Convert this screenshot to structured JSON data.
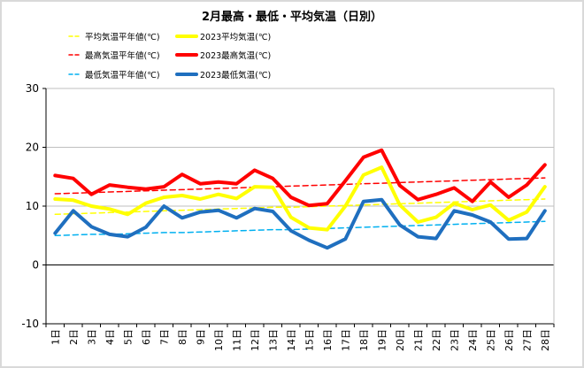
{
  "chart_data": {
    "type": "line",
    "title": "2月最高・最低・平均気温（日別）",
    "xlabel": "",
    "ylabel": "",
    "ylim": [
      -10,
      30
    ],
    "yticks": [
      -10,
      0,
      10,
      20,
      30
    ],
    "grid": "horizontal",
    "categories": [
      "1日",
      "2日",
      "3日",
      "4日",
      "5日",
      "6日",
      "7日",
      "8日",
      "9日",
      "10日",
      "11日",
      "12日",
      "13日",
      "14日",
      "15日",
      "16日",
      "17日",
      "18日",
      "19日",
      "20日",
      "21日",
      "22日",
      "23日",
      "24日",
      "25日",
      "26日",
      "27日",
      "28日"
    ],
    "legend_position": "top-left",
    "series": [
      {
        "name": "平均気温平年値(℃)",
        "color": "#ffff00",
        "style": "dashed",
        "width": 1.5,
        "values": [
          8.6,
          8.7,
          8.8,
          8.9,
          9.0,
          9.1,
          9.2,
          9.3,
          9.4,
          9.5,
          9.6,
          9.7,
          9.8,
          9.8,
          9.9,
          10.0,
          10.1,
          10.2,
          10.3,
          10.4,
          10.5,
          10.6,
          10.7,
          10.8,
          10.9,
          11.0,
          11.1,
          11.2
        ]
      },
      {
        "name": "2023平均気温(℃)",
        "color": "#ffff00",
        "style": "solid",
        "width": 4,
        "values": [
          11.2,
          11.0,
          10.0,
          9.5,
          8.6,
          10.5,
          11.5,
          11.8,
          11.2,
          12.0,
          11.3,
          13.3,
          13.2,
          8.1,
          6.3,
          6.0,
          10.0,
          15.3,
          16.6,
          10.2,
          7.3,
          8.1,
          10.5,
          9.4,
          10.2,
          7.6,
          9.0,
          13.3
        ]
      },
      {
        "name": "最高気温平年値(℃)",
        "color": "#ff0000",
        "style": "dashed",
        "width": 1.5,
        "values": [
          12.1,
          12.2,
          12.3,
          12.4,
          12.5,
          12.6,
          12.7,
          12.8,
          12.9,
          13.0,
          13.1,
          13.2,
          13.3,
          13.4,
          13.5,
          13.6,
          13.7,
          13.8,
          13.9,
          14.0,
          14.1,
          14.2,
          14.3,
          14.4,
          14.5,
          14.6,
          14.7,
          14.8
        ]
      },
      {
        "name": "2023最高気温(℃)",
        "color": "#ff0000",
        "style": "solid",
        "width": 4,
        "values": [
          15.2,
          14.7,
          12.0,
          13.6,
          13.2,
          12.9,
          13.3,
          15.4,
          13.8,
          14.1,
          13.8,
          16.1,
          14.7,
          11.5,
          10.1,
          10.4,
          14.3,
          18.3,
          19.5,
          13.5,
          11.1,
          12.0,
          13.1,
          10.8,
          14.1,
          11.5,
          13.6,
          17.0
        ]
      },
      {
        "name": "最低気温平年値(℃)",
        "color": "#00b0f0",
        "style": "dashed",
        "width": 1.5,
        "values": [
          5.0,
          5.1,
          5.2,
          5.2,
          5.3,
          5.4,
          5.5,
          5.5,
          5.6,
          5.7,
          5.8,
          5.9,
          6.0,
          6.0,
          6.1,
          6.2,
          6.3,
          6.4,
          6.5,
          6.6,
          6.7,
          6.8,
          6.9,
          7.0,
          7.1,
          7.2,
          7.3,
          7.4
        ]
      },
      {
        "name": "2023最低気温(℃)",
        "color": "#1f6fbf",
        "style": "solid",
        "width": 4,
        "values": [
          5.4,
          9.2,
          6.5,
          5.2,
          4.8,
          6.4,
          10.0,
          8.0,
          9.0,
          9.3,
          8.0,
          9.6,
          9.1,
          5.8,
          4.2,
          2.9,
          4.4,
          10.8,
          11.1,
          6.8,
          4.8,
          4.5,
          9.2,
          8.5,
          7.3,
          4.4,
          4.5,
          9.2
        ]
      }
    ]
  }
}
